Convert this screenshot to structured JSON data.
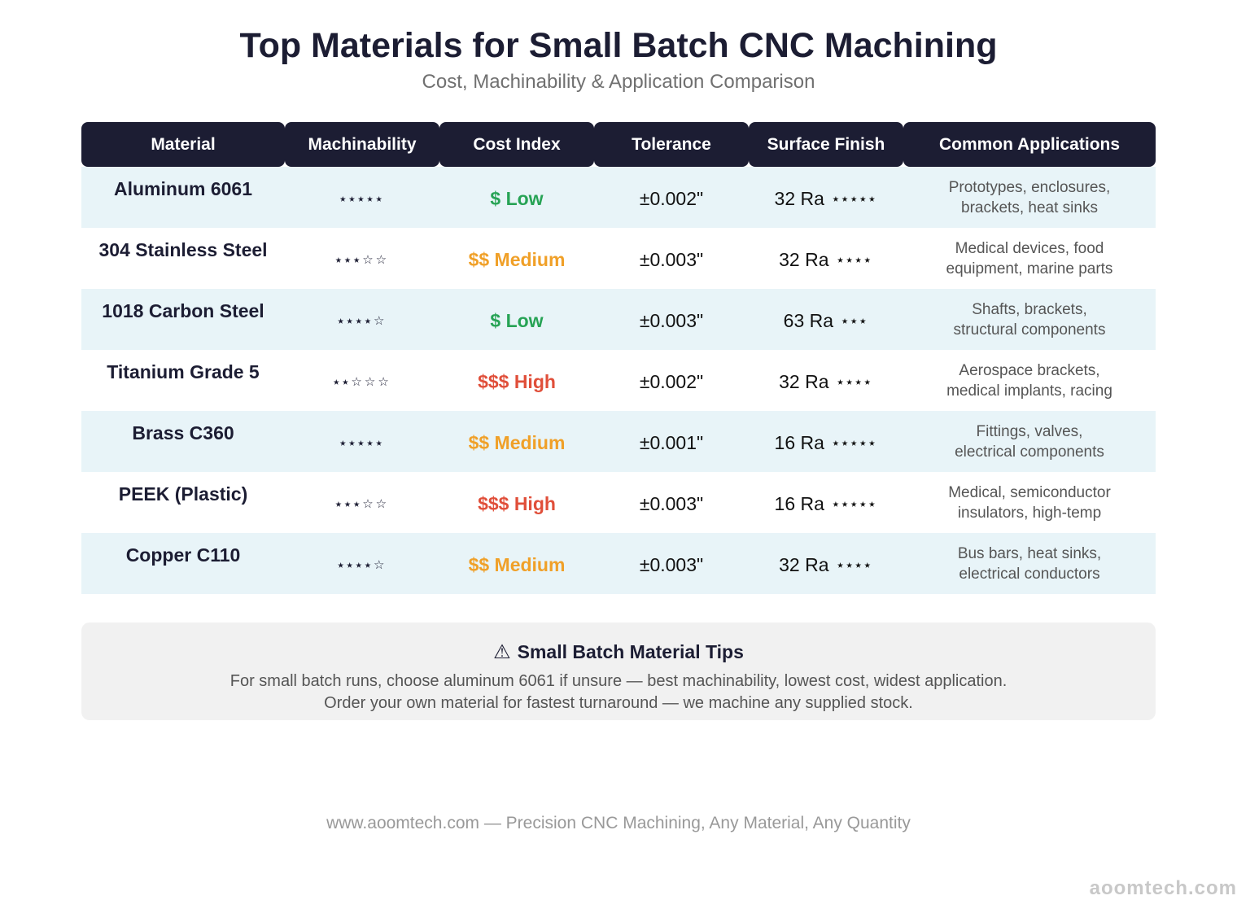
{
  "header": {
    "title": "Top Materials for Small Batch CNC Machining",
    "subtitle": "Cost, Machinability & Application Comparison"
  },
  "table": {
    "columns": [
      "Material",
      "Machinability",
      "Cost Index",
      "Tolerance",
      "Surface Finish",
      "Common Applications"
    ],
    "rows": [
      {
        "material": "Aluminum 6061",
        "machinability": "⭑⭑⭑⭑⭑",
        "cost": "$ Low",
        "cost_color": "#27a355",
        "tolerance": "±0.002\"",
        "finish": "32 Ra",
        "finish_stars": "⭑⭑⭑⭑⭑",
        "applications": "Prototypes, enclosures,\nbrackets, heat sinks"
      },
      {
        "material": "304 Stainless Steel",
        "machinability": "⭑⭑⭑☆☆",
        "cost": "$$ Medium",
        "cost_color": "#f0a028",
        "tolerance": "±0.003\"",
        "finish": "32 Ra",
        "finish_stars": "⭑⭑⭑⭑",
        "applications": "Medical devices, food\nequipment, marine parts"
      },
      {
        "material": "1018 Carbon Steel",
        "machinability": "⭑⭑⭑⭑☆",
        "cost": "$ Low",
        "cost_color": "#27a355",
        "tolerance": "±0.003\"",
        "finish": "63 Ra",
        "finish_stars": "⭑⭑⭑",
        "applications": "Shafts, brackets,\nstructural components"
      },
      {
        "material": "Titanium Grade 5",
        "machinability": "⭑⭑☆☆☆",
        "cost": "$$$ High",
        "cost_color": "#e04f3a",
        "tolerance": "±0.002\"",
        "finish": "32 Ra",
        "finish_stars": "⭑⭑⭑⭑",
        "applications": "Aerospace brackets,\nmedical implants, racing"
      },
      {
        "material": "Brass C360",
        "machinability": "⭑⭑⭑⭑⭑",
        "cost": "$$ Medium",
        "cost_color": "#f0a028",
        "tolerance": "±0.001\"",
        "finish": "16 Ra",
        "finish_stars": "⭑⭑⭑⭑⭑",
        "applications": "Fittings, valves,\nelectrical components"
      },
      {
        "material": "PEEK (Plastic)",
        "machinability": "⭑⭑⭑☆☆",
        "cost": "$$$ High",
        "cost_color": "#e04f3a",
        "tolerance": "±0.003\"",
        "finish": "16 Ra",
        "finish_stars": "⭑⭑⭑⭑⭑",
        "applications": "Medical, semiconductor\ninsulators, high-temp"
      },
      {
        "material": "Copper C110",
        "machinability": "⭑⭑⭑⭑☆",
        "cost": "$$ Medium",
        "cost_color": "#f0a028",
        "tolerance": "±0.003\"",
        "finish": "32 Ra",
        "finish_stars": "⭑⭑⭑⭑",
        "applications": "Bus bars, heat sinks,\nelectrical conductors"
      }
    ]
  },
  "tips": {
    "icon": "warning-icon",
    "icon_glyph": "⚠",
    "title": "Small Batch Material Tips",
    "line1": "For small batch runs, choose aluminum 6061 if unsure — best machinability, lowest cost, widest application.",
    "line2": "Order your own material for fastest turnaround — we machine any supplied stock."
  },
  "footer": {
    "text": "www.aoomtech.com — Precision CNC Machining, Any Material, Any Quantity"
  },
  "watermark": {
    "text": "aoomtech.com"
  }
}
